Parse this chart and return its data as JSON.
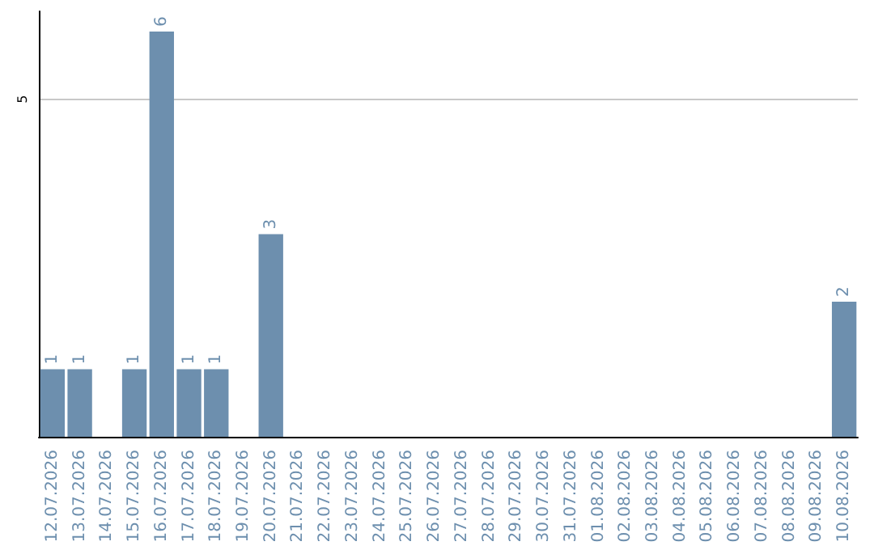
{
  "chart_data": {
    "type": "bar",
    "categories": [
      "12.07.2026",
      "13.07.2026",
      "14.07.2026",
      "15.07.2026",
      "16.07.2026",
      "17.07.2026",
      "18.07.2026",
      "19.07.2026",
      "20.07.2026",
      "21.07.2026",
      "22.07.2026",
      "23.07.2026",
      "24.07.2026",
      "25.07.2026",
      "26.07.2026",
      "27.07.2026",
      "28.07.2026",
      "29.07.2026",
      "30.07.2026",
      "31.07.2026",
      "01.08.2026",
      "02.08.2026",
      "03.08.2026",
      "04.08.2026",
      "05.08.2026",
      "06.08.2026",
      "07.08.2026",
      "08.08.2026",
      "09.08.2026",
      "10.08.2026"
    ],
    "values": [
      1,
      1,
      0,
      1,
      6,
      1,
      1,
      0,
      3,
      0,
      0,
      0,
      0,
      0,
      0,
      0,
      0,
      0,
      0,
      0,
      0,
      0,
      0,
      0,
      0,
      0,
      0,
      0,
      0,
      2
    ],
    "value_labels": [
      "1",
      "1",
      null,
      "1",
      "6",
      "1",
      "1",
      null,
      "3",
      null,
      null,
      null,
      null,
      null,
      null,
      null,
      null,
      null,
      null,
      null,
      null,
      null,
      null,
      null,
      null,
      null,
      null,
      null,
      null,
      "2"
    ],
    "color": "#6d8fae",
    "ylim": [
      0,
      6.3
    ],
    "yticks": [
      5
    ],
    "grid": "y"
  }
}
